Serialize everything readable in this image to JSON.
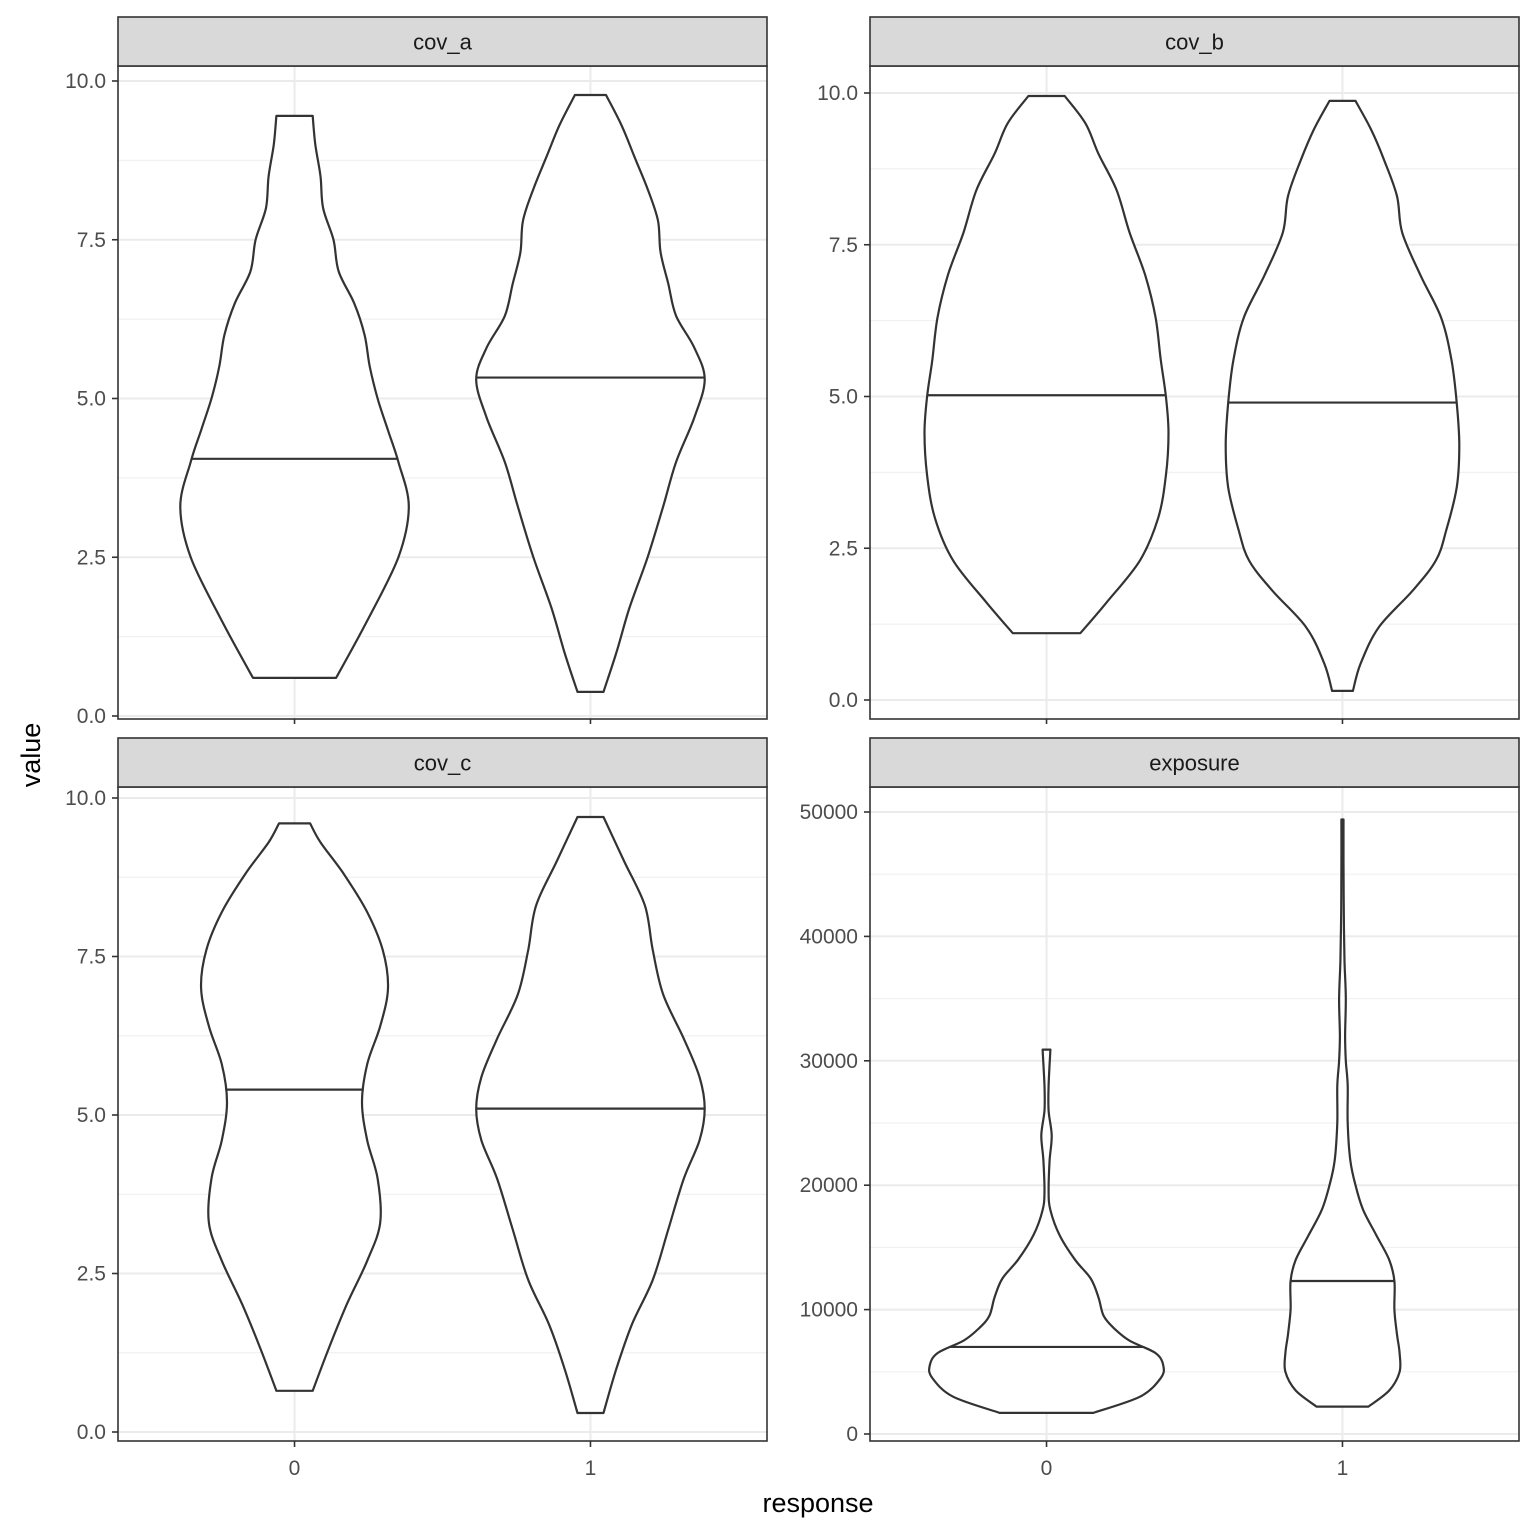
{
  "chart_data": {
    "type": "violin",
    "xlabel": "response",
    "ylabel": "value",
    "categories": [
      "0",
      "1"
    ],
    "grid": true,
    "panels": [
      {
        "name": "cov_a",
        "ylim": [
          0,
          10.0
        ],
        "yticks": [
          0,
          2.5,
          5,
          7.5,
          10
        ],
        "ytick_labels": [
          "0.0",
          "2.5",
          "5.0",
          "7.5",
          "10.0"
        ],
        "groups": [
          {
            "category": "0",
            "min": 0.6,
            "max": 9.45,
            "median": 4.05,
            "profile": [
              [
                0.6,
                0.16
              ],
              [
                1.5,
                0.28
              ],
              [
                2.5,
                0.4
              ],
              [
                3.3,
                0.44
              ],
              [
                4.0,
                0.4
              ],
              [
                4.5,
                0.36
              ],
              [
                5.0,
                0.32
              ],
              [
                5.5,
                0.29
              ],
              [
                6.0,
                0.27
              ],
              [
                6.5,
                0.23
              ],
              [
                7.0,
                0.17
              ],
              [
                7.5,
                0.15
              ],
              [
                8.0,
                0.11
              ],
              [
                8.5,
                0.1
              ],
              [
                9.0,
                0.08
              ],
              [
                9.45,
                0.07
              ]
            ]
          },
          {
            "category": "1",
            "min": 0.38,
            "max": 9.78,
            "median": 5.33,
            "profile": [
              [
                0.38,
                0.05
              ],
              [
                1.0,
                0.1
              ],
              [
                1.7,
                0.15
              ],
              [
                2.5,
                0.22
              ],
              [
                3.3,
                0.28
              ],
              [
                4.0,
                0.33
              ],
              [
                4.7,
                0.4
              ],
              [
                5.3,
                0.44
              ],
              [
                5.8,
                0.4
              ],
              [
                6.3,
                0.33
              ],
              [
                6.8,
                0.3
              ],
              [
                7.3,
                0.27
              ],
              [
                7.8,
                0.26
              ],
              [
                8.3,
                0.22
              ],
              [
                8.8,
                0.17
              ],
              [
                9.3,
                0.12
              ],
              [
                9.78,
                0.06
              ]
            ]
          }
        ]
      },
      {
        "name": "cov_b",
        "ylim": [
          0,
          10.0
        ],
        "yticks": [
          0,
          2.5,
          5,
          7.5,
          10
        ],
        "ytick_labels": [
          "0.0",
          "2.5",
          "5.0",
          "7.5",
          "10.0"
        ],
        "groups": [
          {
            "category": "0",
            "min": 1.1,
            "max": 9.95,
            "median": 5.02,
            "profile": [
              [
                1.1,
                0.13
              ],
              [
                1.6,
                0.23
              ],
              [
                2.3,
                0.36
              ],
              [
                3.0,
                0.43
              ],
              [
                3.7,
                0.46
              ],
              [
                4.4,
                0.47
              ],
              [
                5.0,
                0.46
              ],
              [
                5.6,
                0.44
              ],
              [
                6.3,
                0.42
              ],
              [
                7.0,
                0.38
              ],
              [
                7.7,
                0.32
              ],
              [
                8.4,
                0.27
              ],
              [
                9.0,
                0.2
              ],
              [
                9.5,
                0.15
              ],
              [
                9.95,
                0.07
              ]
            ]
          },
          {
            "category": "1",
            "min": 0.15,
            "max": 9.87,
            "median": 4.9,
            "profile": [
              [
                0.15,
                0.04
              ],
              [
                0.6,
                0.07
              ],
              [
                1.2,
                0.14
              ],
              [
                1.8,
                0.27
              ],
              [
                2.3,
                0.36
              ],
              [
                2.8,
                0.4
              ],
              [
                3.5,
                0.44
              ],
              [
                4.2,
                0.45
              ],
              [
                4.9,
                0.44
              ],
              [
                5.6,
                0.42
              ],
              [
                6.3,
                0.38
              ],
              [
                7.0,
                0.3
              ],
              [
                7.7,
                0.23
              ],
              [
                8.3,
                0.21
              ],
              [
                8.9,
                0.16
              ],
              [
                9.4,
                0.11
              ],
              [
                9.87,
                0.05
              ]
            ]
          }
        ]
      },
      {
        "name": "cov_c",
        "ylim": [
          0,
          10.0
        ],
        "yticks": [
          0,
          2.5,
          5,
          7.5,
          10
        ],
        "ytick_labels": [
          "0.0",
          "2.5",
          "5.0",
          "7.5",
          "10.0"
        ],
        "groups": [
          {
            "category": "0",
            "min": 0.65,
            "max": 9.6,
            "median": 5.4,
            "profile": [
              [
                0.65,
                0.07
              ],
              [
                1.3,
                0.13
              ],
              [
                2.0,
                0.2
              ],
              [
                2.7,
                0.28
              ],
              [
                3.3,
                0.33
              ],
              [
                4.0,
                0.32
              ],
              [
                4.6,
                0.28
              ],
              [
                5.2,
                0.26
              ],
              [
                5.8,
                0.28
              ],
              [
                6.4,
                0.33
              ],
              [
                7.0,
                0.36
              ],
              [
                7.6,
                0.34
              ],
              [
                8.2,
                0.28
              ],
              [
                8.8,
                0.19
              ],
              [
                9.3,
                0.1
              ],
              [
                9.6,
                0.06
              ]
            ]
          },
          {
            "category": "1",
            "min": 0.3,
            "max": 9.7,
            "median": 5.1,
            "profile": [
              [
                0.3,
                0.05
              ],
              [
                1.0,
                0.1
              ],
              [
                1.7,
                0.16
              ],
              [
                2.4,
                0.24
              ],
              [
                3.2,
                0.3
              ],
              [
                4.0,
                0.36
              ],
              [
                4.6,
                0.42
              ],
              [
                5.1,
                0.44
              ],
              [
                5.6,
                0.42
              ],
              [
                6.2,
                0.36
              ],
              [
                6.9,
                0.28
              ],
              [
                7.6,
                0.24
              ],
              [
                8.3,
                0.21
              ],
              [
                9.0,
                0.13
              ],
              [
                9.7,
                0.05
              ]
            ]
          }
        ]
      },
      {
        "name": "exposure",
        "ylim": [
          0,
          52000
        ],
        "yticks": [
          0,
          10000,
          20000,
          30000,
          40000,
          50000
        ],
        "ytick_labels": [
          "0",
          "10000",
          "20000",
          "30000",
          "40000",
          "50000"
        ],
        "groups": [
          {
            "category": "0",
            "min": 1700,
            "max": 30900,
            "median": 7000,
            "profile": [
              [
                1700,
                0.18
              ],
              [
                3000,
                0.36
              ],
              [
                4500,
                0.44
              ],
              [
                5500,
                0.45
              ],
              [
                6500,
                0.42
              ],
              [
                7500,
                0.32
              ],
              [
                8500,
                0.26
              ],
              [
                9500,
                0.22
              ],
              [
                11000,
                0.2
              ],
              [
                12500,
                0.17
              ],
              [
                14000,
                0.11
              ],
              [
                16000,
                0.05
              ],
              [
                18000,
                0.015
              ],
              [
                19500,
                0.008
              ],
              [
                22000,
                0.012
              ],
              [
                24000,
                0.02
              ],
              [
                26000,
                0.008
              ],
              [
                28000,
                0.008
              ],
              [
                30900,
                0.015
              ]
            ]
          },
          {
            "category": "1",
            "min": 2200,
            "max": 49400,
            "median": 12300,
            "profile": [
              [
                2200,
                0.1
              ],
              [
                3500,
                0.18
              ],
              [
                5000,
                0.22
              ],
              [
                6500,
                0.22
              ],
              [
                8000,
                0.21
              ],
              [
                10000,
                0.2
              ],
              [
                12300,
                0.2
              ],
              [
                14000,
                0.18
              ],
              [
                16000,
                0.13
              ],
              [
                18000,
                0.08
              ],
              [
                20000,
                0.05
              ],
              [
                22000,
                0.03
              ],
              [
                25000,
                0.02
              ],
              [
                28000,
                0.02
              ],
              [
                30000,
                0.013
              ],
              [
                32000,
                0.01
              ],
              [
                35000,
                0.013
              ],
              [
                38000,
                0.008
              ],
              [
                42000,
                0.005
              ],
              [
                46000,
                0.004
              ],
              [
                49400,
                0.004
              ]
            ]
          }
        ]
      }
    ]
  }
}
